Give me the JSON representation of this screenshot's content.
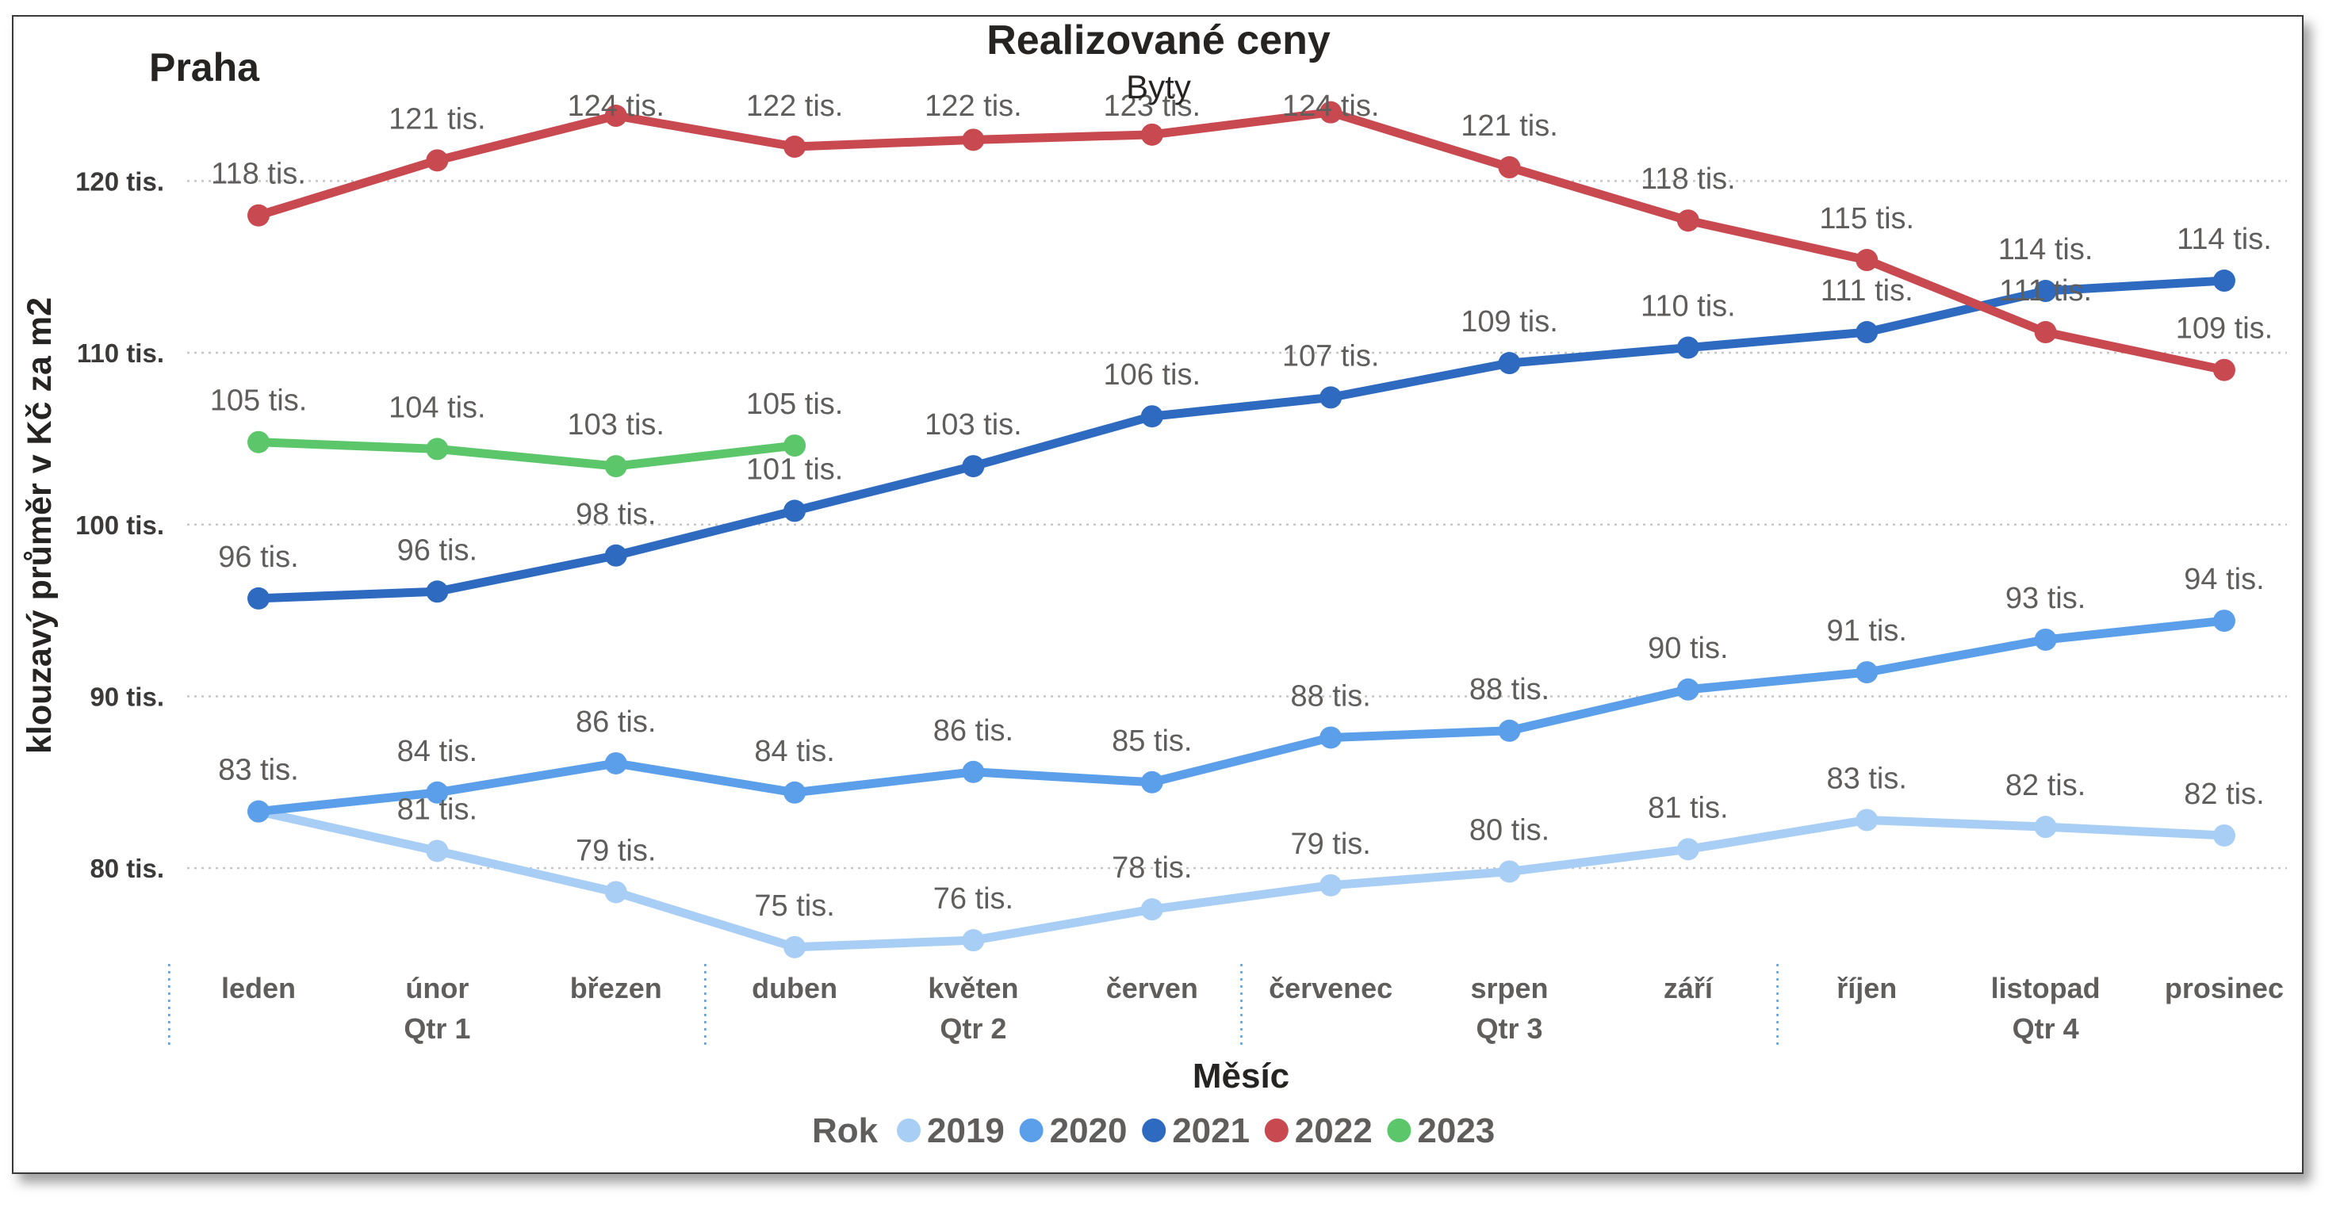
{
  "page": {
    "region_label": "Praha"
  },
  "chart_data": {
    "type": "line",
    "title": "Realizované ceny",
    "subtitle": "Byty",
    "xlabel": "Měsíc",
    "ylabel": "klouzavý průměr v Kč za m2",
    "categories": [
      "leden",
      "únor",
      "březen",
      "duben",
      "květen",
      "červen",
      "červenec",
      "srpen",
      "září",
      "říjen",
      "listopad",
      "prosinec"
    ],
    "quarters": [
      "Qtr 1",
      "Qtr 2",
      "Qtr 3",
      "Qtr 4"
    ],
    "ylim": [
      75,
      125
    ],
    "y_ticks": [
      {
        "value": 120,
        "label": "120 tis."
      },
      {
        "value": 110,
        "label": "110 tis."
      },
      {
        "value": 100,
        "label": "100 tis."
      },
      {
        "value": 90,
        "label": "90 tis."
      },
      {
        "value": 80,
        "label": "80 tis."
      }
    ],
    "grid": true,
    "legend": {
      "title": "Rok",
      "position": "bottom"
    },
    "series": [
      {
        "name": "2019",
        "color": "#a8cef5",
        "values": [
          83.3,
          81.0,
          78.6,
          75.4,
          75.8,
          77.6,
          79.0,
          79.8,
          81.1,
          82.8,
          82.4,
          81.9
        ],
        "labels": [
          "83 tis.",
          "81 tis.",
          "79 tis.",
          "75 tis.",
          "76 tis.",
          "78 tis.",
          "79 tis.",
          "80 tis.",
          "81 tis.",
          "83 tis.",
          "82 tis.",
          "82 tis."
        ]
      },
      {
        "name": "2020",
        "color": "#5b9fea",
        "values": [
          83.3,
          84.4,
          86.1,
          84.4,
          85.6,
          85.0,
          87.6,
          88.0,
          90.4,
          91.4,
          93.3,
          94.4
        ],
        "labels": [
          "83 tis.",
          "84 tis.",
          "86 tis.",
          "84 tis.",
          "86 tis.",
          "85 tis.",
          "88 tis.",
          "88 tis.",
          "90 tis.",
          "91 tis.",
          "93 tis.",
          "94 tis."
        ]
      },
      {
        "name": "2021",
        "color": "#2e6ac0",
        "values": [
          95.7,
          96.1,
          98.2,
          100.8,
          103.4,
          106.3,
          107.4,
          109.4,
          110.3,
          111.2,
          113.6,
          114.2
        ],
        "labels": [
          "96 tis.",
          "96 tis.",
          "98 tis.",
          "101 tis.",
          "103 tis.",
          "106 tis.",
          "107 tis.",
          "109 tis.",
          "110 tis.",
          "111 tis.",
          "114 tis.",
          "114 tis."
        ]
      },
      {
        "name": "2022",
        "color": "#c8494f",
        "values": [
          118.0,
          121.2,
          123.8,
          122.0,
          122.4,
          122.7,
          124.0,
          120.8,
          117.7,
          115.4,
          111.2,
          109.0
        ],
        "labels": [
          "118 tis.",
          "121 tis.",
          "124 tis.",
          "122 tis.",
          "122 tis.",
          "123 tis.",
          "124 tis.",
          "121 tis.",
          "118 tis.",
          "115 tis.",
          "111 tis.",
          "109 tis."
        ]
      },
      {
        "name": "2023",
        "color": "#5cc66b",
        "values": [
          104.8,
          104.4,
          103.4,
          104.6,
          null,
          null,
          null,
          null,
          null,
          null,
          null,
          null
        ],
        "labels": [
          "105 tis.",
          "104 tis.",
          "103 tis.",
          "105 tis."
        ]
      }
    ]
  }
}
